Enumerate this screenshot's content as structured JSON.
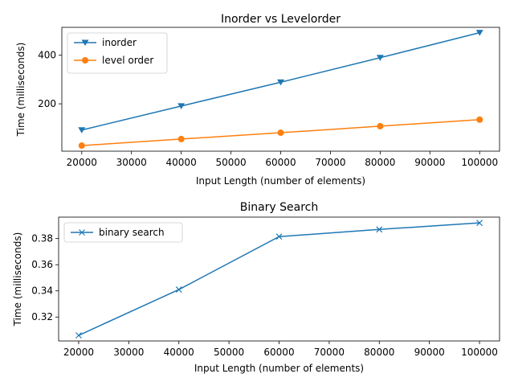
{
  "chart_data": [
    {
      "type": "line",
      "title": "Inorder vs Levelorder",
      "xlabel": "Input Length (number of elements)",
      "ylabel": "Time (milliseconds)",
      "x": [
        20000,
        40000,
        60000,
        80000,
        100000
      ],
      "xlim": [
        16000,
        104000
      ],
      "ylim": [
        5,
        515
      ],
      "xticks": [
        20000,
        30000,
        40000,
        50000,
        60000,
        70000,
        80000,
        90000,
        100000
      ],
      "yticks": [
        200,
        400
      ],
      "grid": false,
      "legend": "upper-left",
      "series": [
        {
          "name": "inorder",
          "marker": "triangle-down",
          "color": "#1f77b4",
          "values": [
            92,
            191,
            289,
            390,
            493
          ]
        },
        {
          "name": "level order",
          "marker": "circle",
          "color": "#ff7f0e",
          "values": [
            28,
            55,
            81,
            108,
            135
          ]
        }
      ]
    },
    {
      "type": "line",
      "title": "Binary Search",
      "xlabel": "Input Length (number of elements)",
      "ylabel": "Time (milliseconds)",
      "x": [
        20000,
        40000,
        60000,
        80000,
        100000
      ],
      "xlim": [
        16000,
        104000
      ],
      "ylim": [
        0.3017,
        0.3964
      ],
      "xticks": [
        20000,
        30000,
        40000,
        50000,
        60000,
        70000,
        80000,
        90000,
        100000
      ],
      "yticks": [
        0.32,
        0.34,
        0.36,
        0.38
      ],
      "ytick_labels": [
        "0.32",
        "0.34",
        "0.36",
        "0.38"
      ],
      "grid": false,
      "legend": "upper-left",
      "series": [
        {
          "name": "binary search",
          "marker": "x",
          "color": "#1f77b4",
          "values": [
            0.306,
            0.341,
            0.3815,
            0.387,
            0.392
          ]
        }
      ]
    }
  ]
}
